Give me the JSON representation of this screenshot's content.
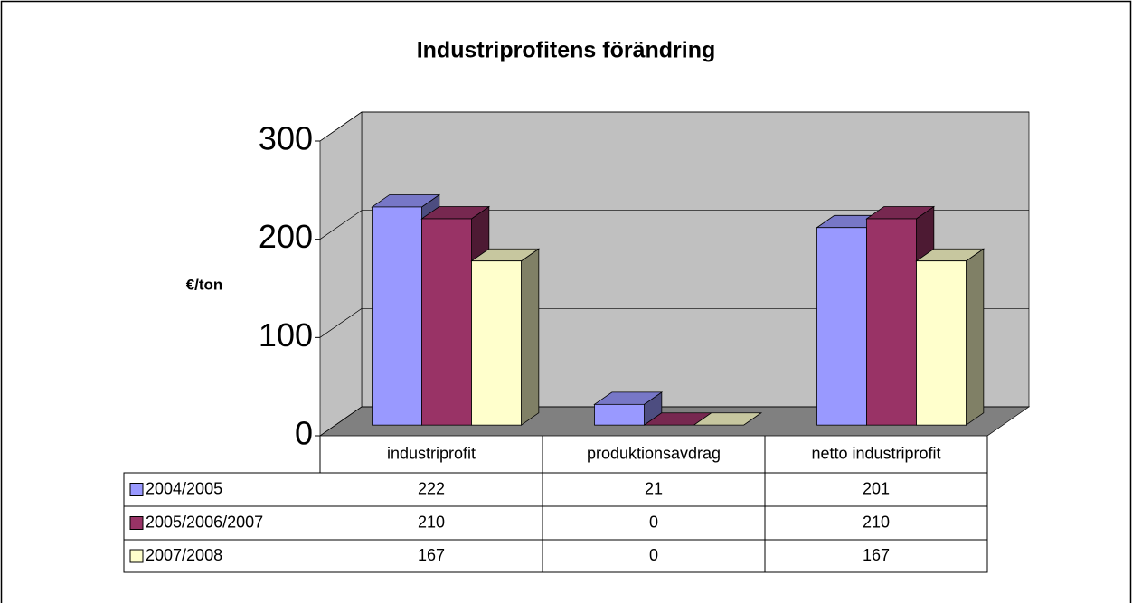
{
  "chart_data": {
    "type": "bar3d",
    "title": "Industriprofitens förändring",
    "y_label": "€/ton",
    "categories": [
      "industriprofit",
      "produktionsavdrag",
      "netto industriprofit"
    ],
    "series": [
      {
        "name": "2004/2005",
        "color": "#9999ff",
        "values": [
          222,
          21,
          201
        ]
      },
      {
        "name": "2005/2006/2007",
        "color": "#993366",
        "values": [
          210,
          0,
          210
        ]
      },
      {
        "name": "2007/2008",
        "color": "#ffffcc",
        "values": [
          167,
          0,
          167
        ]
      }
    ],
    "ylim": [
      0,
      300
    ],
    "yticks": [
      0,
      100,
      200,
      300
    ],
    "grid": true,
    "data_table": true
  }
}
